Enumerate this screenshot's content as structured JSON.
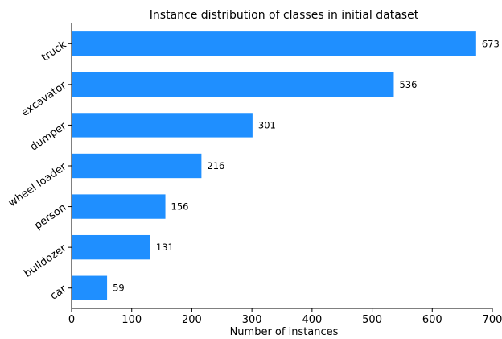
{
  "chart_data": {
    "type": "bar",
    "orientation": "horizontal",
    "title": "Instance distribution of classes in initial dataset",
    "xlabel": "Number of instances",
    "ylabel": "",
    "categories": [
      "truck",
      "excavator",
      "dumper",
      "wheel loader",
      "person",
      "bulldozer",
      "car"
    ],
    "values": [
      673,
      536,
      301,
      216,
      156,
      131,
      59
    ],
    "value_labels": [
      "673",
      "536",
      "301",
      "216",
      "156",
      "131",
      "59"
    ],
    "xlim": [
      0,
      700
    ],
    "xticks": [
      0,
      100,
      200,
      300,
      400,
      500,
      600,
      700
    ],
    "xtick_labels": [
      "0",
      "100",
      "200",
      "300",
      "400",
      "500",
      "600",
      "700"
    ],
    "bar_color": "#1f8fff",
    "grid": false,
    "legend": "none"
  }
}
